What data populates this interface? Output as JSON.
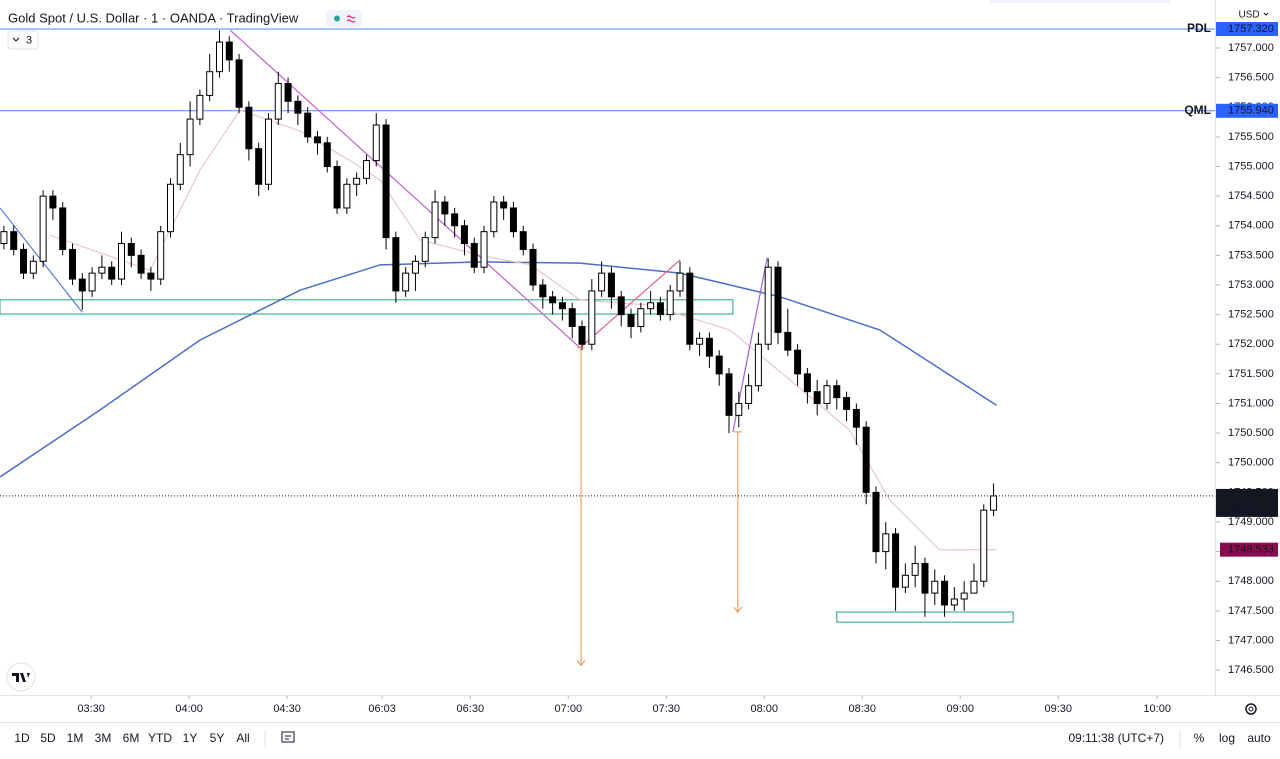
{
  "header": {
    "symbol_title": "Gold Spot / U.S. Dollar · 1 · OANDA · TradingView",
    "currency": "USD",
    "indicator_count": "3"
  },
  "chart_data": {
    "type": "candlestick",
    "x": [
      0,
      1,
      2,
      3,
      4,
      5,
      6,
      7,
      8,
      9,
      10,
      11,
      12,
      13,
      14,
      15,
      16,
      17,
      18,
      19,
      20,
      21,
      22,
      23,
      24,
      25,
      26,
      27,
      28,
      29,
      30,
      31,
      32,
      33,
      34,
      35,
      36,
      37,
      38,
      39,
      40,
      41,
      42,
      43,
      44,
      45,
      46,
      47,
      48,
      49,
      50,
      51,
      52,
      53,
      54,
      55,
      56,
      57,
      58,
      59,
      60,
      61,
      62,
      63,
      64,
      65,
      66,
      67,
      68,
      69,
      70,
      71,
      72,
      73,
      74,
      75,
      76,
      77,
      78,
      79,
      80,
      81,
      82,
      83,
      84,
      85,
      86,
      87,
      88,
      89,
      90,
      91,
      92,
      93,
      94,
      95,
      96,
      97,
      98,
      99,
      100,
      101
    ],
    "open": [
      1753.7,
      1753.9,
      1753.6,
      1753.2,
      1753.4,
      1754.5,
      1754.3,
      1753.6,
      1753.1,
      1752.9,
      1753.2,
      1753.3,
      1753.1,
      1753.7,
      1753.5,
      1753.2,
      1753.1,
      1753.9,
      1754.7,
      1755.2,
      1755.8,
      1756.2,
      1756.6,
      1757.1,
      1756.8,
      1756.0,
      1755.3,
      1754.7,
      1755.8,
      1756.4,
      1756.1,
      1755.9,
      1755.5,
      1755.4,
      1755.0,
      1754.3,
      1754.7,
      1754.8,
      1755.1,
      1755.7,
      1753.8,
      1752.9,
      1753.2,
      1753.4,
      1753.8,
      1754.4,
      1754.2,
      1754.0,
      1753.7,
      1753.3,
      1753.9,
      1754.4,
      1754.3,
      1753.9,
      1753.6,
      1753.0,
      1752.8,
      1752.7,
      1752.6,
      1752.3,
      1752.0,
      1752.9,
      1753.2,
      1752.8,
      1752.5,
      1752.3,
      1752.6,
      1752.7,
      1752.5,
      1752.9,
      1753.2,
      1752.0,
      1752.1,
      1751.8,
      1751.5,
      1750.8,
      1751.0,
      1751.3,
      1752.0,
      1753.3,
      1752.2,
      1751.9,
      1751.5,
      1751.2,
      1751.0,
      1751.3,
      1751.1,
      1750.9,
      1750.6,
      1749.5,
      1748.5,
      1748.8,
      1747.9,
      1748.1,
      1748.3,
      1747.8,
      1748.0,
      1747.6,
      1747.7,
      1747.8,
      1748.0,
      1749.2
    ],
    "high": [
      1754.0,
      1754.0,
      1753.7,
      1753.5,
      1754.6,
      1754.6,
      1754.4,
      1753.7,
      1753.2,
      1753.3,
      1753.5,
      1753.4,
      1753.9,
      1753.8,
      1753.6,
      1753.3,
      1754.0,
      1754.8,
      1755.4,
      1756.1,
      1756.3,
      1756.9,
      1757.3,
      1757.2,
      1756.9,
      1756.1,
      1755.4,
      1755.9,
      1756.6,
      1756.5,
      1756.2,
      1756.0,
      1755.6,
      1755.5,
      1755.1,
      1754.8,
      1754.9,
      1755.2,
      1755.9,
      1755.8,
      1753.9,
      1753.3,
      1753.5,
      1753.9,
      1754.6,
      1754.5,
      1754.3,
      1754.1,
      1753.8,
      1754.0,
      1754.5,
      1754.5,
      1754.4,
      1754.0,
      1753.7,
      1753.1,
      1752.9,
      1752.8,
      1752.7,
      1752.4,
      1753.1,
      1753.4,
      1753.3,
      1752.9,
      1752.6,
      1752.7,
      1752.9,
      1752.8,
      1753.0,
      1753.4,
      1753.3,
      1752.2,
      1752.2,
      1751.9,
      1751.6,
      1751.2,
      1751.5,
      1752.2,
      1753.45,
      1753.4,
      1752.6,
      1752.0,
      1751.6,
      1751.4,
      1751.4,
      1751.4,
      1751.2,
      1751.0,
      1750.7,
      1749.6,
      1749.0,
      1748.9,
      1748.3,
      1748.6,
      1748.4,
      1748.2,
      1748.1,
      1747.9,
      1748.0,
      1748.3,
      1749.3,
      1749.65
    ],
    "low": [
      1753.6,
      1753.5,
      1753.1,
      1753.1,
      1753.3,
      1754.1,
      1753.5,
      1753.0,
      1752.58,
      1752.8,
      1753.1,
      1753.0,
      1753.0,
      1753.3,
      1753.1,
      1752.9,
      1753.0,
      1753.8,
      1754.6,
      1755.0,
      1755.7,
      1756.1,
      1756.5,
      1756.6,
      1755.9,
      1755.1,
      1754.5,
      1754.6,
      1755.7,
      1755.9,
      1755.7,
      1755.4,
      1755.2,
      1754.9,
      1754.2,
      1754.2,
      1754.5,
      1754.7,
      1755.0,
      1753.6,
      1752.7,
      1752.8,
      1752.9,
      1753.3,
      1753.7,
      1754.0,
      1753.8,
      1753.5,
      1753.2,
      1753.2,
      1753.8,
      1754.1,
      1753.8,
      1753.5,
      1752.9,
      1752.6,
      1752.5,
      1752.4,
      1752.1,
      1751.9,
      1751.9,
      1752.8,
      1752.6,
      1752.3,
      1752.1,
      1752.2,
      1752.5,
      1752.4,
      1752.4,
      1752.8,
      1751.9,
      1751.8,
      1751.6,
      1751.3,
      1750.5,
      1750.6,
      1750.9,
      1751.2,
      1751.9,
      1752.0,
      1751.8,
      1751.3,
      1751.0,
      1750.8,
      1750.9,
      1750.9,
      1750.7,
      1750.3,
      1749.3,
      1748.3,
      1748.2,
      1747.5,
      1747.8,
      1747.9,
      1747.4,
      1747.6,
      1747.4,
      1747.5,
      1747.5,
      1747.8,
      1747.9,
      1749.1
    ],
    "close": [
      1753.9,
      1753.6,
      1753.2,
      1753.4,
      1754.5,
      1754.3,
      1753.6,
      1753.1,
      1752.9,
      1753.2,
      1753.3,
      1753.1,
      1753.7,
      1753.5,
      1753.2,
      1753.1,
      1753.9,
      1754.7,
      1755.2,
      1755.8,
      1756.2,
      1756.6,
      1757.1,
      1756.8,
      1756.0,
      1755.3,
      1754.7,
      1755.8,
      1756.4,
      1756.1,
      1755.9,
      1755.5,
      1755.4,
      1755.0,
      1754.3,
      1754.7,
      1754.8,
      1755.1,
      1755.7,
      1753.8,
      1752.9,
      1753.2,
      1753.4,
      1753.8,
      1754.4,
      1754.2,
      1754.0,
      1753.7,
      1753.3,
      1753.9,
      1754.4,
      1754.3,
      1753.9,
      1753.6,
      1753.0,
      1752.8,
      1752.7,
      1752.6,
      1752.3,
      1752.0,
      1752.9,
      1753.2,
      1752.8,
      1752.5,
      1752.3,
      1752.6,
      1752.7,
      1752.5,
      1752.9,
      1753.2,
      1752.0,
      1752.1,
      1751.8,
      1751.5,
      1750.8,
      1751.0,
      1751.3,
      1752.0,
      1753.3,
      1752.2,
      1751.9,
      1751.5,
      1751.2,
      1751.0,
      1751.3,
      1751.1,
      1750.9,
      1750.6,
      1749.5,
      1748.5,
      1748.8,
      1747.9,
      1748.1,
      1748.3,
      1747.8,
      1748.0,
      1747.6,
      1747.7,
      1747.8,
      1748.0,
      1749.2,
      1749.44
    ],
    "up_color": "#ffffff",
    "down_color": "#000000",
    "wick_color": "#000000",
    "xlim": [
      -0.4,
      123.6
    ],
    "ylim": [
      1746.08,
      1757.81
    ],
    "xticks": [
      {
        "value": 8.9,
        "label": "03:30"
      },
      {
        "value": 18.9,
        "label": "04:00"
      },
      {
        "value": 28.9,
        "label": "04:30"
      },
      {
        "value": 38.6,
        "label": "06:03"
      },
      {
        "value": 47.6,
        "label": "06:30"
      },
      {
        "value": 57.6,
        "label": "07:00"
      },
      {
        "value": 67.6,
        "label": "07:30"
      },
      {
        "value": 77.6,
        "label": "08:00"
      },
      {
        "value": 87.6,
        "label": "08:30"
      },
      {
        "value": 97.6,
        "label": "09:00"
      },
      {
        "value": 107.6,
        "label": "09:30"
      },
      {
        "value": 117.7,
        "label": "10:00"
      }
    ],
    "yticks": [
      {
        "value": 1746.5,
        "label": "1746.500"
      },
      {
        "value": 1747,
        "label": "1747.000"
      },
      {
        "value": 1747.5,
        "label": "1747.500"
      },
      {
        "value": 1748,
        "label": "1748.000"
      },
      {
        "value": 1748.5,
        "label": "1748.500"
      },
      {
        "value": 1749,
        "label": "1749.000"
      },
      {
        "value": 1749.5,
        "label": "1749.500"
      },
      {
        "value": 1750,
        "label": "1750.000"
      },
      {
        "value": 1750.5,
        "label": "1750.500"
      },
      {
        "value": 1751,
        "label": "1751.000"
      },
      {
        "value": 1751.5,
        "label": "1751.500"
      },
      {
        "value": 1752,
        "label": "1752.000"
      },
      {
        "value": 1752.5,
        "label": "1752.500"
      },
      {
        "value": 1753,
        "label": "1753.000"
      },
      {
        "value": 1753.5,
        "label": "1753.500"
      },
      {
        "value": 1754,
        "label": "1754.000"
      },
      {
        "value": 1754.5,
        "label": "1754.500"
      },
      {
        "value": 1755,
        "label": "1755.000"
      },
      {
        "value": 1755.5,
        "label": "1755.500"
      },
      {
        "value": 1756,
        "label": "1756.000"
      },
      {
        "value": 1756.5,
        "label": "1756.500"
      },
      {
        "value": 1757,
        "label": "1757.000"
      }
    ],
    "indicators": [
      {
        "color": "#4a6fc6",
        "x": [
          -0.4,
          9.8,
          20.0,
          30.2,
          38.4,
          48.6,
          58.8,
          69.0,
          79.2,
          89.4,
          101.3
        ],
        "values": [
          1749.76,
          1750.89,
          1752.07,
          1752.91,
          1753.34,
          1753.39,
          1753.37,
          1753.2,
          1752.8,
          1752.24,
          1750.97
        ]
      },
      {
        "color": "#e8c8cc",
        "x": [
          4.7,
          14.9,
          20.0,
          24.1,
          30.2,
          35.3,
          38.4,
          42.5,
          48.6,
          53.7,
          58.8,
          65.9,
          74.1,
          80.2,
          86.3,
          90.4,
          95.5,
          101.3
        ],
        "values": [
          1753.84,
          1753.25,
          1754.94,
          1755.95,
          1755.6,
          1755.1,
          1754.77,
          1753.76,
          1753.5,
          1753.34,
          1752.75,
          1752.66,
          1752.24,
          1751.4,
          1750.55,
          1749.37,
          1748.53,
          1748.533
        ]
      }
    ],
    "levels": [
      {
        "name": "PDL",
        "value": 1757.32,
        "value_label": "1757.320",
        "color": "#2962ff"
      },
      {
        "name": "QML",
        "value": 1755.94,
        "value_label": "1755.940",
        "color": "#2962ff"
      }
    ],
    "last_price": {
      "value": 1749.44,
      "label": "1749.440",
      "countdown": "00:22"
    },
    "ma_price": {
      "value": 1748.533,
      "label": "1748.533",
      "color": "#880e4f"
    },
    "zones": [
      {
        "x": [
          -0.4,
          74.4
        ],
        "values": [
          1752.75,
          1752.51
        ],
        "color": "#26a17b"
      },
      {
        "x": [
          85.0,
          103.0
        ],
        "values": [
          1747.48,
          1747.31
        ],
        "color": "#26a17b"
      }
    ],
    "trendlines": [
      {
        "x": [
          -0.4,
          8.0
        ],
        "values": [
          1754.3,
          1752.54
        ],
        "color": "#5b7bd6"
      },
      {
        "x": [
          23.1,
          58.8
        ],
        "values": [
          1757.3,
          1751.94
        ],
        "color": "#c060d0"
      },
      {
        "x": [
          58.8,
          69.0
        ],
        "values": [
          1751.94,
          1753.42
        ],
        "color": "#e06090"
      },
      {
        "x": [
          74.4,
          77.9
        ],
        "values": [
          1750.52,
          1753.46
        ],
        "color": "#a060d0"
      }
    ],
    "projections": [
      {
        "x": 58.9,
        "values": [
          1751.94,
          1746.58
        ],
        "color": "#f0904a"
      },
      {
        "x": 74.9,
        "values": [
          1750.52,
          1747.48
        ],
        "color": "#f0904a"
      }
    ]
  },
  "toolbar": {
    "ranges": [
      "1D",
      "5D",
      "1M",
      "3M",
      "6M",
      "YTD",
      "1Y",
      "5Y",
      "All"
    ],
    "clock": "09:11:38 (UTC+7)",
    "options": [
      "%",
      "log",
      "auto"
    ]
  }
}
